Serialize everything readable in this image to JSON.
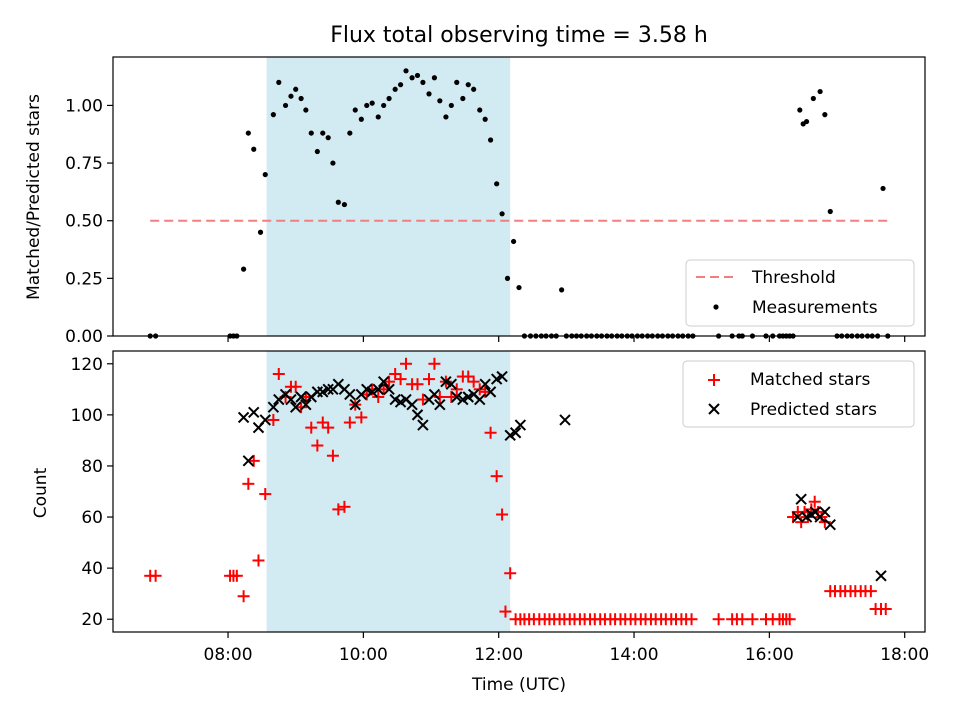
{
  "chart_data": [
    {
      "type": "scatter",
      "title": "Flux total observing time = 3.58 h",
      "xlabel": "",
      "ylabel": "Matched/Predicted stars",
      "xlim": [
        6.3,
        18.3
      ],
      "ylim": [
        0.0,
        1.21
      ],
      "yticks": [
        0.0,
        0.25,
        0.5,
        0.75,
        1.0
      ],
      "yticklabels": [
        "0.00",
        "0.25",
        "0.50",
        "0.75",
        "1.00"
      ],
      "grid": false,
      "highlight_span": {
        "x0": 8.57,
        "x1": 12.17,
        "color": "#add8e6"
      },
      "threshold": {
        "name": "Threshold",
        "y": 0.5,
        "x0": 6.85,
        "x1": 17.75,
        "color": "#f08080"
      },
      "legend": {
        "placement": "lower-right",
        "entries": [
          "Threshold",
          "Measurements"
        ]
      },
      "series": [
        {
          "name": "Measurements",
          "color": "#000000",
          "x": [
            6.85,
            6.93,
            8.03,
            8.08,
            8.13,
            8.23,
            8.3,
            8.38,
            8.48,
            8.55,
            8.67,
            8.75,
            8.85,
            8.93,
            9.0,
            9.08,
            9.15,
            9.23,
            9.32,
            9.4,
            9.48,
            9.55,
            9.63,
            9.72,
            9.8,
            9.88,
            9.97,
            10.05,
            10.13,
            10.22,
            10.3,
            10.38,
            10.47,
            10.55,
            10.63,
            10.72,
            10.8,
            10.88,
            10.97,
            11.05,
            11.13,
            11.22,
            11.3,
            11.38,
            11.47,
            11.55,
            11.63,
            11.72,
            11.8,
            11.88,
            11.97,
            12.05,
            12.13,
            12.22,
            12.3,
            12.38,
            12.47,
            12.55,
            12.63,
            12.7,
            12.78,
            12.85,
            12.93,
            13.0,
            13.08,
            13.15,
            13.22,
            13.3,
            13.37,
            13.45,
            13.52,
            13.6,
            13.67,
            13.75,
            13.82,
            13.9,
            13.97,
            14.05,
            14.12,
            14.2,
            14.27,
            14.35,
            14.42,
            14.5,
            14.57,
            14.65,
            14.72,
            14.8,
            14.87,
            15.25,
            15.45,
            15.55,
            15.6,
            15.75,
            15.95,
            16.05,
            16.15,
            16.2,
            16.25,
            16.3,
            16.35,
            16.45,
            16.5,
            16.55,
            16.65,
            16.75,
            16.82,
            16.9,
            17.0,
            17.07,
            17.15,
            17.22,
            17.3,
            17.37,
            17.45,
            17.52,
            17.6,
            17.68,
            17.75
          ],
          "y": [
            0.0,
            0.0,
            0.0,
            0.0,
            0.0,
            0.29,
            0.88,
            0.81,
            0.45,
            0.7,
            0.96,
            1.1,
            1.0,
            1.04,
            1.07,
            1.03,
            0.98,
            0.88,
            0.8,
            0.88,
            0.86,
            0.75,
            0.58,
            0.57,
            0.88,
            0.98,
            0.94,
            1.0,
            1.01,
            0.95,
            1.0,
            1.03,
            1.07,
            1.09,
            1.15,
            1.12,
            1.13,
            1.1,
            1.05,
            1.12,
            1.02,
            0.95,
            1.0,
            1.1,
            1.03,
            1.09,
            1.07,
            0.98,
            0.94,
            0.85,
            0.66,
            0.53,
            0.25,
            0.41,
            0.21,
            0.0,
            0.0,
            0.0,
            0.0,
            0.0,
            0.0,
            0.0,
            0.2,
            0.0,
            0.0,
            0.0,
            0.0,
            0.0,
            0.0,
            0.0,
            0.0,
            0.0,
            0.0,
            0.0,
            0.0,
            0.0,
            0.0,
            0.0,
            0.0,
            0.0,
            0.0,
            0.0,
            0.0,
            0.0,
            0.0,
            0.0,
            0.0,
            0.0,
            0.0,
            0.0,
            0.0,
            0.0,
            0.0,
            0.0,
            0.0,
            0.0,
            0.0,
            0.0,
            0.0,
            0.0,
            0.0,
            0.98,
            0.92,
            0.93,
            1.03,
            1.06,
            0.96,
            0.54,
            0.0,
            0.0,
            0.0,
            0.0,
            0.0,
            0.0,
            0.0,
            0.0,
            0.0,
            0.64,
            0.0
          ]
        }
      ]
    },
    {
      "type": "scatter",
      "title": "",
      "xlabel": "Time (UTC)",
      "ylabel": "Count",
      "xlim": [
        6.3,
        18.3
      ],
      "ylim": [
        15,
        125
      ],
      "yticks": [
        20,
        40,
        60,
        80,
        100,
        120
      ],
      "yticklabels": [
        "20",
        "40",
        "60",
        "80",
        "100",
        "120"
      ],
      "xticks": [
        8,
        10,
        12,
        14,
        16,
        18
      ],
      "xticklabels": [
        "08:00",
        "10:00",
        "12:00",
        "14:00",
        "16:00",
        "18:00"
      ],
      "grid": false,
      "highlight_span": {
        "x0": 8.57,
        "x1": 12.17,
        "color": "#add8e6"
      },
      "legend": {
        "placement": "top-right",
        "entries": [
          "Matched stars",
          "Predicted stars"
        ]
      },
      "series": [
        {
          "name": "Matched stars",
          "marker": "+",
          "color": "#ff0000",
          "x": [
            6.85,
            6.93,
            8.03,
            8.08,
            8.13,
            8.23,
            8.3,
            8.38,
            8.45,
            8.55,
            8.67,
            8.75,
            8.85,
            8.93,
            9.0,
            9.08,
            9.15,
            9.23,
            9.32,
            9.4,
            9.48,
            9.55,
            9.63,
            9.72,
            9.8,
            9.88,
            9.97,
            10.05,
            10.13,
            10.22,
            10.3,
            10.38,
            10.47,
            10.55,
            10.63,
            10.72,
            10.8,
            10.88,
            10.97,
            11.05,
            11.13,
            11.22,
            11.3,
            11.38,
            11.47,
            11.55,
            11.63,
            11.72,
            11.8,
            11.88,
            11.97,
            12.05,
            12.1,
            12.17,
            12.25,
            12.32,
            12.38,
            12.45,
            12.52,
            12.6,
            12.68,
            12.75,
            12.82,
            12.9,
            12.97,
            13.05,
            13.12,
            13.2,
            13.27,
            13.35,
            13.42,
            13.5,
            13.57,
            13.65,
            13.72,
            13.8,
            13.87,
            13.95,
            14.02,
            14.1,
            14.17,
            14.25,
            14.32,
            14.4,
            14.47,
            14.55,
            14.62,
            14.7,
            14.77,
            14.85,
            15.25,
            15.45,
            15.52,
            15.6,
            15.75,
            15.95,
            16.05,
            16.15,
            16.2,
            16.25,
            16.3,
            16.35,
            16.42,
            16.47,
            16.52,
            16.57,
            16.62,
            16.67,
            16.72,
            16.77,
            16.82,
            16.9,
            16.97,
            17.05,
            17.12,
            17.2,
            17.27,
            17.35,
            17.42,
            17.5,
            17.57,
            17.65,
            17.72
          ],
          "y": [
            37,
            37,
            37,
            37,
            37,
            29,
            73,
            82,
            43,
            69,
            98,
            116,
            107,
            111,
            111,
            103,
            107,
            95,
            88,
            97,
            95,
            84,
            63,
            64,
            97,
            104,
            99,
            108,
            110,
            107,
            110,
            113,
            116,
            114,
            120,
            112,
            112,
            106,
            114,
            120,
            107,
            113,
            107,
            110,
            115,
            115,
            113,
            110,
            109,
            93,
            76,
            61,
            23,
            38,
            20,
            20,
            20,
            20,
            20,
            20,
            20,
            20,
            20,
            20,
            20,
            20,
            20,
            20,
            20,
            20,
            20,
            20,
            20,
            20,
            20,
            20,
            20,
            20,
            20,
            20,
            20,
            20,
            20,
            20,
            20,
            20,
            20,
            20,
            20,
            20,
            20,
            20,
            20,
            20,
            20,
            20,
            20,
            20,
            20,
            20,
            20,
            60,
            62,
            58,
            62,
            60,
            63,
            66,
            62,
            60,
            58,
            31,
            31,
            31,
            31,
            31,
            31,
            31,
            31,
            31,
            24,
            24,
            24
          ]
        },
        {
          "name": "Predicted stars",
          "marker": "x",
          "color": "#000000",
          "x": [
            8.23,
            8.3,
            8.38,
            8.45,
            8.55,
            8.67,
            8.75,
            8.85,
            8.93,
            9.0,
            9.08,
            9.15,
            9.23,
            9.32,
            9.4,
            9.48,
            9.55,
            9.63,
            9.72,
            9.8,
            9.88,
            9.97,
            10.05,
            10.13,
            10.22,
            10.3,
            10.38,
            10.47,
            10.55,
            10.63,
            10.72,
            10.8,
            10.88,
            10.97,
            11.05,
            11.13,
            11.22,
            11.3,
            11.38,
            11.47,
            11.55,
            11.63,
            11.72,
            11.8,
            11.88,
            11.97,
            12.05,
            12.17,
            12.25,
            12.32,
            12.98,
            16.42,
            16.47,
            16.55,
            16.62,
            16.68,
            16.75,
            16.82,
            16.9,
            17.65
          ],
          "y": [
            99,
            82,
            101,
            95,
            98,
            103,
            106,
            108,
            106,
            103,
            107,
            104,
            107,
            109,
            109,
            110,
            110,
            112,
            110,
            108,
            104,
            108,
            110,
            109,
            110,
            113,
            110,
            106,
            105,
            106,
            104,
            100,
            96,
            106,
            108,
            104,
            113,
            112,
            107,
            106,
            107,
            108,
            106,
            112,
            109,
            114,
            115,
            92,
            93,
            96,
            98,
            60,
            67,
            60,
            61,
            62,
            60,
            62,
            57,
            37
          ]
        }
      ]
    }
  ]
}
